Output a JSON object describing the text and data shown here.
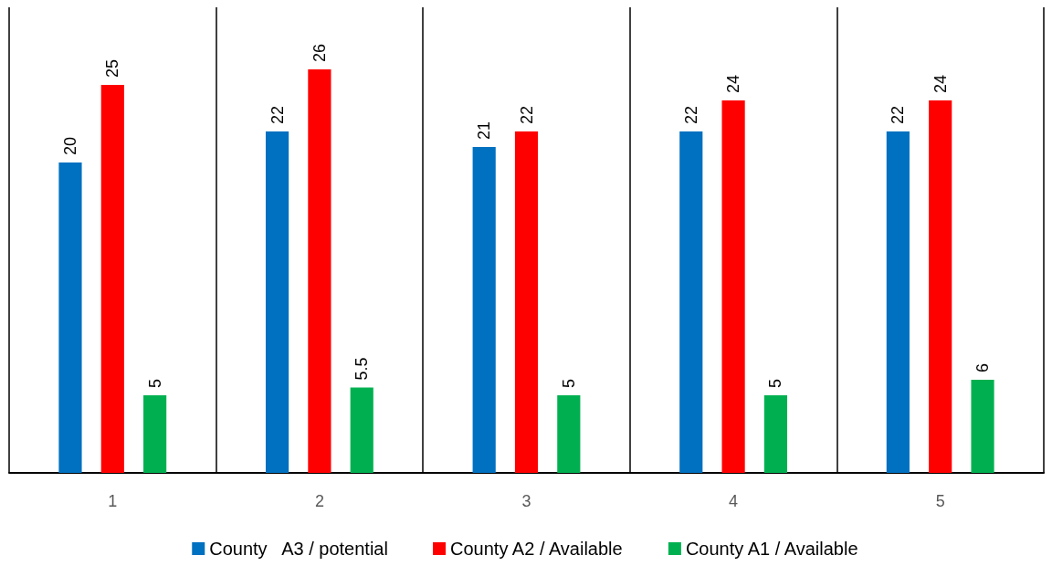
{
  "chart_data": {
    "type": "bar",
    "categories": [
      "1",
      "2",
      "3",
      "4",
      "5"
    ],
    "series": [
      {
        "name": "County   A3 / potential",
        "color": "#0070c0",
        "values": [
          20,
          22,
          21,
          22,
          22
        ]
      },
      {
        "name": "County A2 / Available",
        "color": "#ff0000",
        "values": [
          25,
          26,
          22,
          24,
          24
        ]
      },
      {
        "name": "County A1 / Available",
        "color": "#00b050",
        "values": [
          5,
          5.5,
          5,
          5,
          6
        ]
      }
    ],
    "ylim": [
      0,
      30
    ],
    "tick_labels": "x",
    "grid": "x",
    "legend": "bottom",
    "data_labels": true
  }
}
